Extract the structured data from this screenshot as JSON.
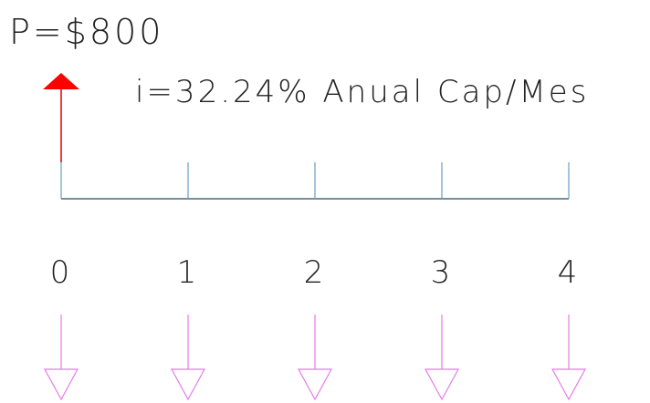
{
  "title": "P=$800",
  "rate": "i=32.24% Anual Cap/Mes",
  "periods": [
    "0",
    "1",
    "2",
    "3",
    "4"
  ]
}
